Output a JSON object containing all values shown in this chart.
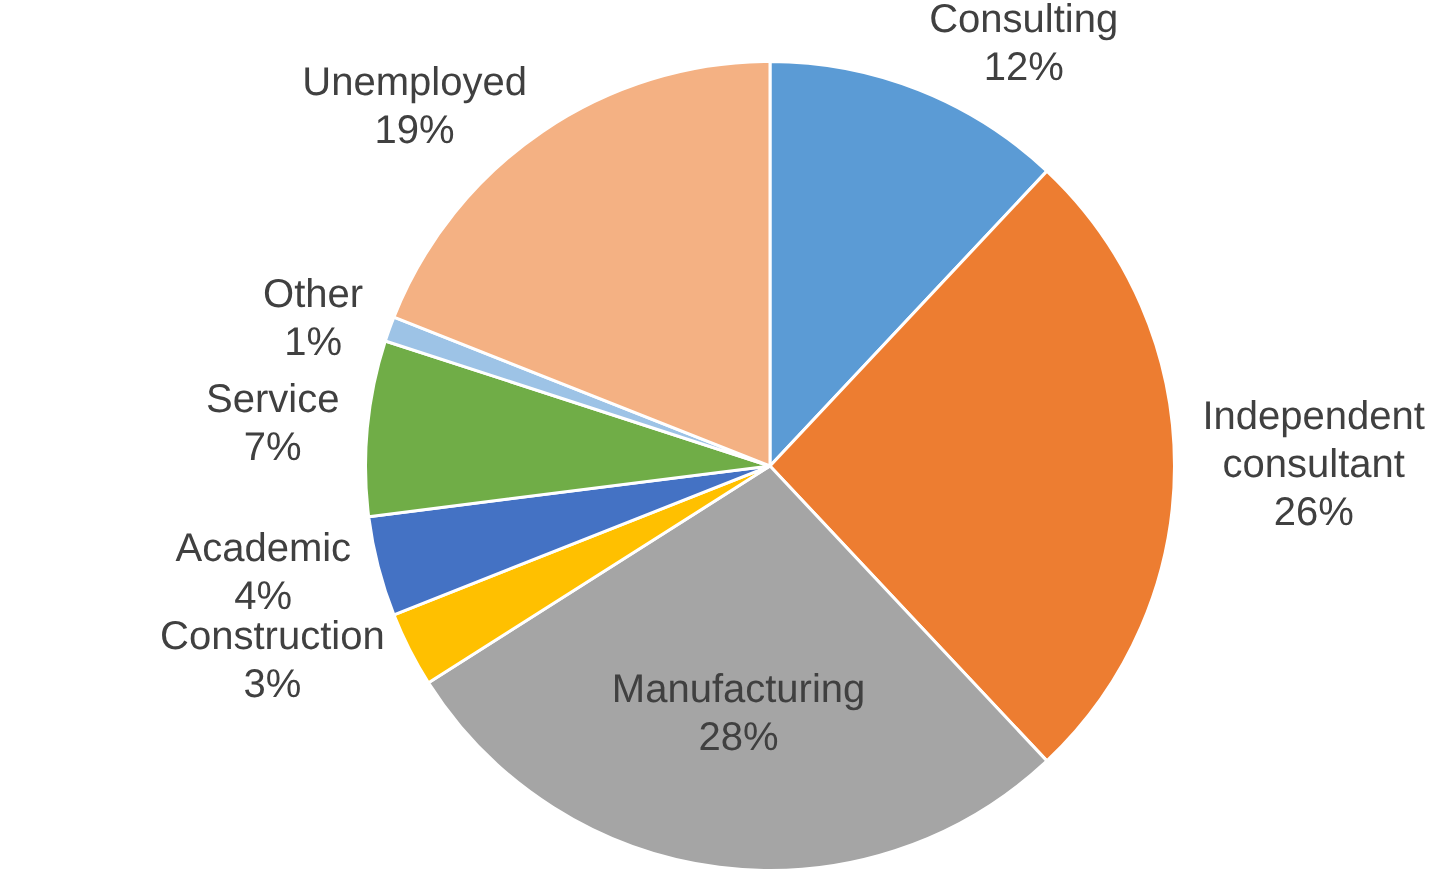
{
  "chart_data": {
    "type": "pie",
    "categories": [
      "Consulting",
      "Independent consultant",
      "Manufacturing",
      "Construction",
      "Academic",
      "Service",
      "Other",
      "Unemployed"
    ],
    "values": [
      12,
      26,
      28,
      3,
      4,
      7,
      1,
      19
    ],
    "value_labels": [
      "12%",
      "26%",
      "28%",
      "3%",
      "4%",
      "7%",
      "1%",
      "19%"
    ],
    "colors": [
      "#5b9bd5",
      "#ed7d31",
      "#a5a5a5",
      "#ffc000",
      "#4472c4",
      "#70ad47",
      "#9dc3e6",
      "#f4b183"
    ],
    "legend": false
  }
}
